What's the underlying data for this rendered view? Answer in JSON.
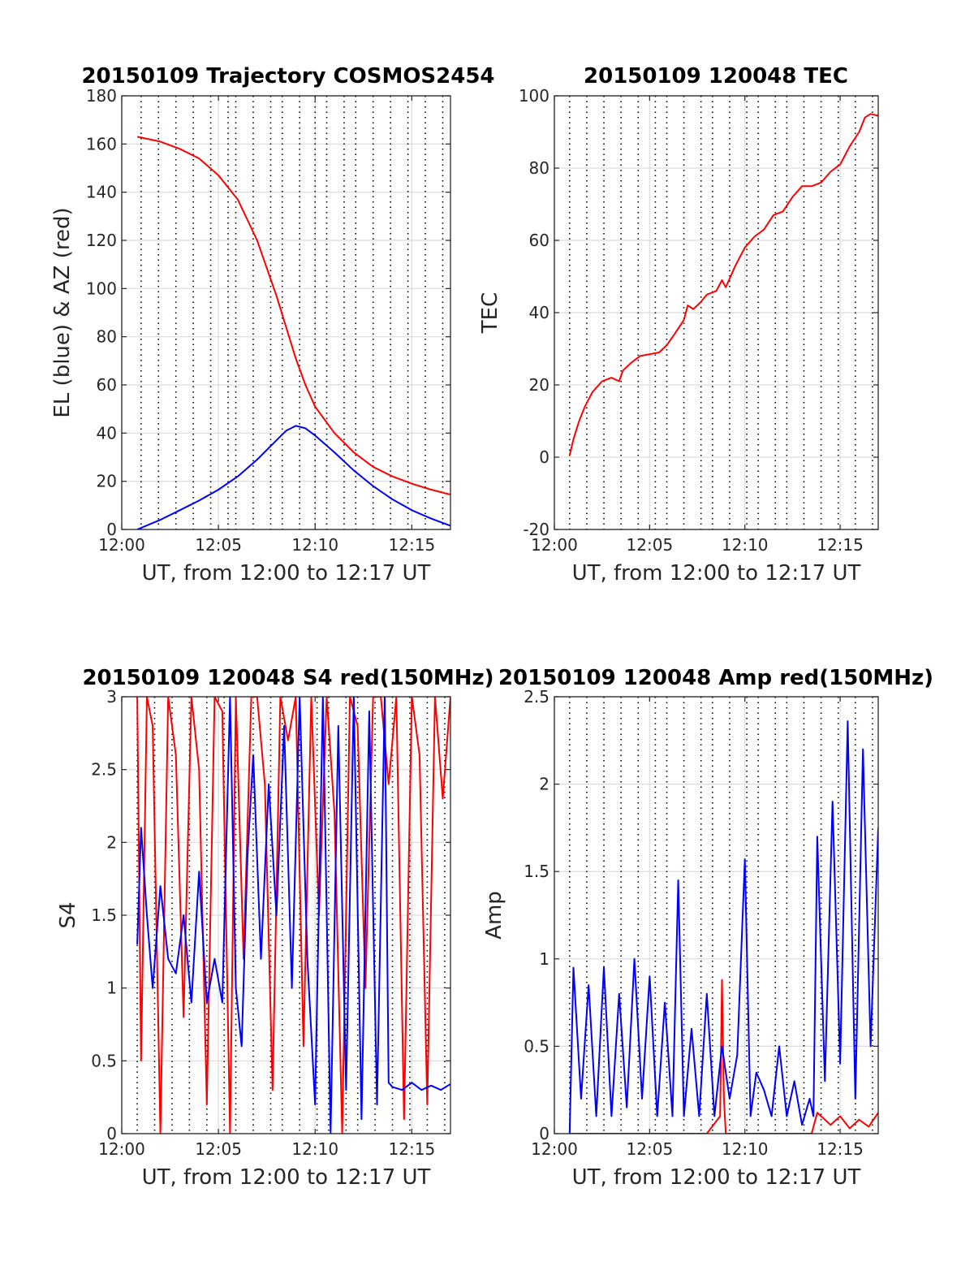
{
  "colors": {
    "red": "#ff0000",
    "blue": "#0000ff",
    "axis": "#262626",
    "grid": "#dcdcdc"
  },
  "chart_data": [
    {
      "id": "trajectory",
      "type": "line",
      "title": "20150109 Trajectory COSMOS2454",
      "xlabel": "UT, from 12:00 to 12:17 UT",
      "ylabel": "EL (blue) & AZ (red)",
      "xlim_minutes": [
        0,
        17
      ],
      "ylim": [
        0,
        180
      ],
      "yticks": [
        0,
        20,
        40,
        60,
        80,
        100,
        120,
        140,
        160,
        180
      ],
      "xticks": [
        "12:00",
        "12:05",
        "12:10",
        "12:15"
      ],
      "grid": true,
      "series": [
        {
          "color": "red",
          "x": [
            0.8,
            2,
            3,
            4,
            5,
            6,
            7,
            8,
            8.5,
            9,
            9.5,
            10,
            11,
            12,
            13,
            14,
            15,
            16,
            17
          ],
          "y": [
            163,
            161,
            158,
            154,
            147,
            137,
            120,
            97,
            84,
            71,
            60,
            51,
            40,
            32,
            26,
            22,
            19,
            16.5,
            14.5
          ]
        },
        {
          "color": "blue",
          "x": [
            0.8,
            2,
            3,
            4,
            5,
            6,
            7,
            8,
            8.5,
            9,
            9.5,
            10,
            11,
            12,
            13,
            14,
            15,
            16,
            17
          ],
          "y": [
            0,
            4,
            8,
            12,
            16.5,
            22,
            29,
            37,
            41,
            43,
            42,
            39,
            32,
            24.5,
            18,
            12.5,
            8,
            4.5,
            1.5
          ]
        }
      ],
      "vlines_minutes": [
        1,
        1.9,
        2.8,
        3.7,
        4.6,
        5.5,
        5.9,
        6.8,
        7.7,
        8.3,
        9.2,
        10.0,
        10.6,
        11.5,
        12.1,
        13.0,
        13.9,
        14.8,
        15.7,
        16.6
      ]
    },
    {
      "id": "tec",
      "type": "line",
      "title": "20150109 120048 TEC",
      "xlabel": "UT, from 12:00 to 12:17 UT",
      "ylabel": "TEC",
      "xlim_minutes": [
        0,
        17
      ],
      "ylim": [
        -20,
        100
      ],
      "yticks": [
        -20,
        0,
        20,
        40,
        60,
        80,
        100
      ],
      "xticks": [
        "12:00",
        "12:05",
        "12:10",
        "12:15"
      ],
      "grid": true,
      "series": [
        {
          "color": "red",
          "x": [
            0.8,
            1.0,
            1.3,
            1.6,
            2.0,
            2.5,
            3.0,
            3.4,
            3.6,
            4.0,
            4.5,
            5.0,
            5.5,
            5.9,
            6.3,
            6.8,
            7.0,
            7.3,
            7.7,
            8.0,
            8.5,
            8.8,
            9.0,
            9.5,
            10.0,
            10.5,
            11.0,
            11.5,
            12.0,
            12.5,
            13.0,
            13.5,
            14.0,
            14.5,
            15.0,
            15.5,
            16.0,
            16.3,
            16.6,
            17.0
          ],
          "y": [
            0.5,
            5,
            10,
            14,
            18,
            21,
            22,
            21,
            24,
            26,
            28,
            28.5,
            29,
            31,
            34,
            38,
            42,
            41,
            43,
            45,
            46,
            49,
            47,
            53,
            58,
            61,
            63,
            67,
            68,
            72,
            75,
            75,
            76,
            79,
            81,
            86,
            90,
            94,
            95,
            94.5
          ]
        }
      ],
      "vlines_minutes": [
        0.8,
        1.7,
        2.6,
        3.5,
        4.4,
        5.3,
        5.9,
        6.8,
        7.7,
        8.3,
        9.2,
        10.1,
        10.7,
        11.6,
        12.2,
        13.1,
        14.0,
        14.9,
        15.8,
        16.7
      ]
    },
    {
      "id": "s4",
      "type": "line",
      "title": "20150109 120048 S4 red(150MHz)",
      "xlabel": "UT, from 12:00 to 12:17 UT",
      "ylabel": "S4",
      "xlim_minutes": [
        0,
        17
      ],
      "ylim": [
        0,
        3
      ],
      "yticks": [
        0,
        0.5,
        1,
        1.5,
        2,
        2.5,
        3
      ],
      "xticks": [
        "12:00",
        "12:05",
        "12:10",
        "12:15"
      ],
      "grid": true,
      "series": [
        {
          "color": "red",
          "x": [
            0.8,
            1.0,
            1.3,
            1.6,
            2.0,
            2.4,
            2.8,
            3.2,
            3.6,
            4.0,
            4.4,
            4.8,
            5.2,
            5.6,
            5.9,
            6.3,
            6.7,
            7.0,
            7.4,
            7.8,
            8.2,
            8.6,
            9.0,
            9.4,
            9.8,
            10.2,
            10.6,
            11.0,
            11.4,
            11.8,
            12.2,
            12.6,
            13.0,
            13.4,
            13.8,
            14.2,
            14.6,
            15.0,
            15.4,
            15.8,
            16.2,
            16.6,
            17.0
          ],
          "y": [
            3,
            0.5,
            3,
            2.8,
            0,
            3,
            2.6,
            0.8,
            3,
            2.5,
            0.2,
            3,
            2.9,
            0,
            3,
            1.2,
            3,
            3,
            2.4,
            0.3,
            3,
            2.7,
            3,
            0.6,
            3,
            1.5,
            3,
            2.2,
            0,
            3,
            2.8,
            1.0,
            3,
            3,
            2.4,
            3,
            0.1,
            3,
            2.6,
            0.2,
            3,
            2.3,
            3
          ]
        },
        {
          "color": "blue",
          "x": [
            0.8,
            1.0,
            1.3,
            1.6,
            2.0,
            2.4,
            2.8,
            3.2,
            3.6,
            4.0,
            4.4,
            4.8,
            5.2,
            5.6,
            5.9,
            6.2,
            6.5,
            6.8,
            7.2,
            7.6,
            8.0,
            8.4,
            8.8,
            9.2,
            9.6,
            10.0,
            10.4,
            10.8,
            11.2,
            11.6,
            12.0,
            12.4,
            12.8,
            13.2,
            13.6,
            13.8,
            14.0,
            14.5,
            15.0,
            15.5,
            16.0,
            16.5,
            17.0
          ],
          "y": [
            1.3,
            2.1,
            1.5,
            1.0,
            1.7,
            1.2,
            1.1,
            1.5,
            0.9,
            1.8,
            0.9,
            1.2,
            0.9,
            3.0,
            1.0,
            0.6,
            1.9,
            2.6,
            1.2,
            2.4,
            1.5,
            2.8,
            1.0,
            3.0,
            1.2,
            0.2,
            3.0,
            0.0,
            2.8,
            0.3,
            3.0,
            0.1,
            2.9,
            0.2,
            3.0,
            0.35,
            0.32,
            0.3,
            0.35,
            0.3,
            0.33,
            0.3,
            0.34
          ]
        }
      ],
      "vlines_minutes": [
        0.8,
        1.7,
        2.6,
        3.5,
        4.4,
        5.3,
        5.9,
        6.8,
        7.7,
        8.3,
        9.2,
        10.1,
        10.7,
        11.6,
        12.2,
        13.1,
        14.0,
        14.9,
        15.8,
        16.7
      ]
    },
    {
      "id": "amp",
      "type": "line",
      "title": "20150109 120048 Amp red(150MHz)",
      "xlabel": "UT, from 12:00 to 12:17 UT",
      "ylabel": "Amp",
      "xlim_minutes": [
        0,
        17
      ],
      "ylim": [
        0,
        2.5
      ],
      "yticks": [
        0,
        0.5,
        1,
        1.5,
        2,
        2.5
      ],
      "xticks": [
        "12:00",
        "12:05",
        "12:10",
        "12:15"
      ],
      "grid": true,
      "series": [
        {
          "color": "red",
          "x": [
            0.8,
            8.0,
            8.7,
            8.8,
            8.9,
            9.0,
            13.5,
            13.8,
            14.5,
            15.0,
            15.5,
            16.0,
            16.5,
            17.0
          ],
          "y": [
            0.0,
            0.0,
            0.1,
            0.88,
            0.2,
            0.0,
            0.0,
            0.12,
            0.05,
            0.1,
            0.03,
            0.08,
            0.04,
            0.12
          ]
        },
        {
          "color": "blue",
          "x": [
            0.8,
            1.0,
            1.4,
            1.8,
            2.2,
            2.6,
            3.0,
            3.4,
            3.8,
            4.2,
            4.6,
            5.0,
            5.4,
            5.8,
            6.2,
            6.5,
            6.8,
            7.2,
            7.6,
            8.0,
            8.4,
            8.8,
            9.2,
            9.6,
            10.0,
            10.3,
            10.6,
            11.0,
            11.4,
            11.8,
            12.2,
            12.6,
            13.0,
            13.4,
            13.6,
            13.8,
            14.2,
            14.6,
            15.0,
            15.4,
            15.8,
            16.2,
            16.6,
            17.0
          ],
          "y": [
            0.0,
            0.95,
            0.2,
            0.85,
            0.1,
            0.95,
            0.1,
            0.8,
            0.15,
            1.0,
            0.2,
            0.9,
            0.1,
            0.75,
            0.1,
            1.45,
            0.1,
            0.6,
            0.1,
            0.8,
            0.1,
            0.5,
            0.2,
            0.45,
            1.57,
            0.1,
            0.35,
            0.25,
            0.1,
            0.5,
            0.1,
            0.3,
            0.05,
            0.2,
            0.1,
            1.7,
            0.3,
            1.9,
            0.4,
            2.36,
            0.2,
            2.2,
            0.5,
            1.75
          ]
        }
      ],
      "vlines_minutes": [
        0.8,
        1.7,
        2.6,
        3.5,
        4.4,
        5.3,
        5.9,
        6.8,
        7.7,
        8.3,
        9.2,
        10.1,
        10.7,
        11.6,
        12.2,
        13.1,
        14.0,
        14.9,
        15.8,
        16.7
      ]
    }
  ]
}
